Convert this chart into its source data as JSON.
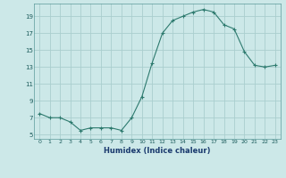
{
  "x": [
    0,
    1,
    2,
    3,
    4,
    5,
    6,
    7,
    8,
    9,
    10,
    11,
    12,
    13,
    14,
    15,
    16,
    17,
    18,
    19,
    20,
    21,
    22,
    23
  ],
  "y": [
    7.5,
    7.0,
    7.0,
    6.5,
    5.5,
    5.8,
    5.8,
    5.8,
    5.5,
    7.0,
    9.5,
    13.5,
    17.0,
    18.5,
    19.0,
    19.5,
    19.8,
    19.5,
    18.0,
    17.5,
    14.8,
    13.2,
    13.0,
    13.2
  ],
  "xlabel": "Humidex (Indice chaleur)",
  "ylim": [
    4.5,
    20.5
  ],
  "xlim": [
    -0.5,
    23.5
  ],
  "yticks": [
    5,
    7,
    9,
    11,
    13,
    15,
    17,
    19
  ],
  "xticks": [
    0,
    1,
    2,
    3,
    4,
    5,
    6,
    7,
    8,
    9,
    10,
    11,
    12,
    13,
    14,
    15,
    16,
    17,
    18,
    19,
    20,
    21,
    22,
    23
  ],
  "line_color": "#2d7a6e",
  "marker": "+",
  "bg_color": "#cce8e8",
  "grid_color": "#aacece"
}
